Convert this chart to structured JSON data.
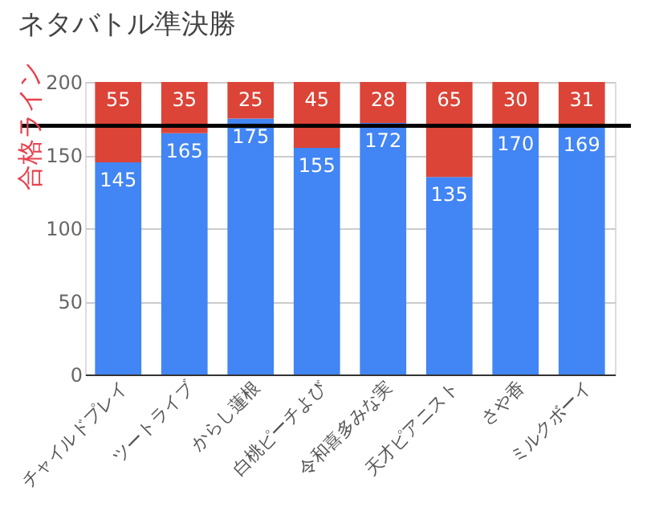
{
  "chart_data": {
    "type": "bar",
    "title": "ネタバトル準決勝",
    "categories": [
      "チャイルドプレイ",
      "ツートライブ",
      "からし蓮根",
      "白桃ピーチよび",
      "令和喜多みな実",
      "天才ピアニスト",
      "さや香",
      "ミルクボーイ"
    ],
    "series": [
      {
        "color": "#4285f4",
        "values": [
          145,
          165,
          175,
          155,
          172,
          135,
          170,
          169
        ]
      },
      {
        "color": "#db4437",
        "values": [
          55,
          35,
          25,
          45,
          28,
          65,
          30,
          31
        ]
      }
    ],
    "stacked": true,
    "data_labels": true,
    "ylim": [
      0,
      200
    ],
    "yticks": [
      0,
      50,
      100,
      150,
      200
    ],
    "grid": "y",
    "ref_lines": [
      {
        "axis": "y",
        "value": 170,
        "label": "合格ライン",
        "color": "#000000"
      }
    ]
  }
}
